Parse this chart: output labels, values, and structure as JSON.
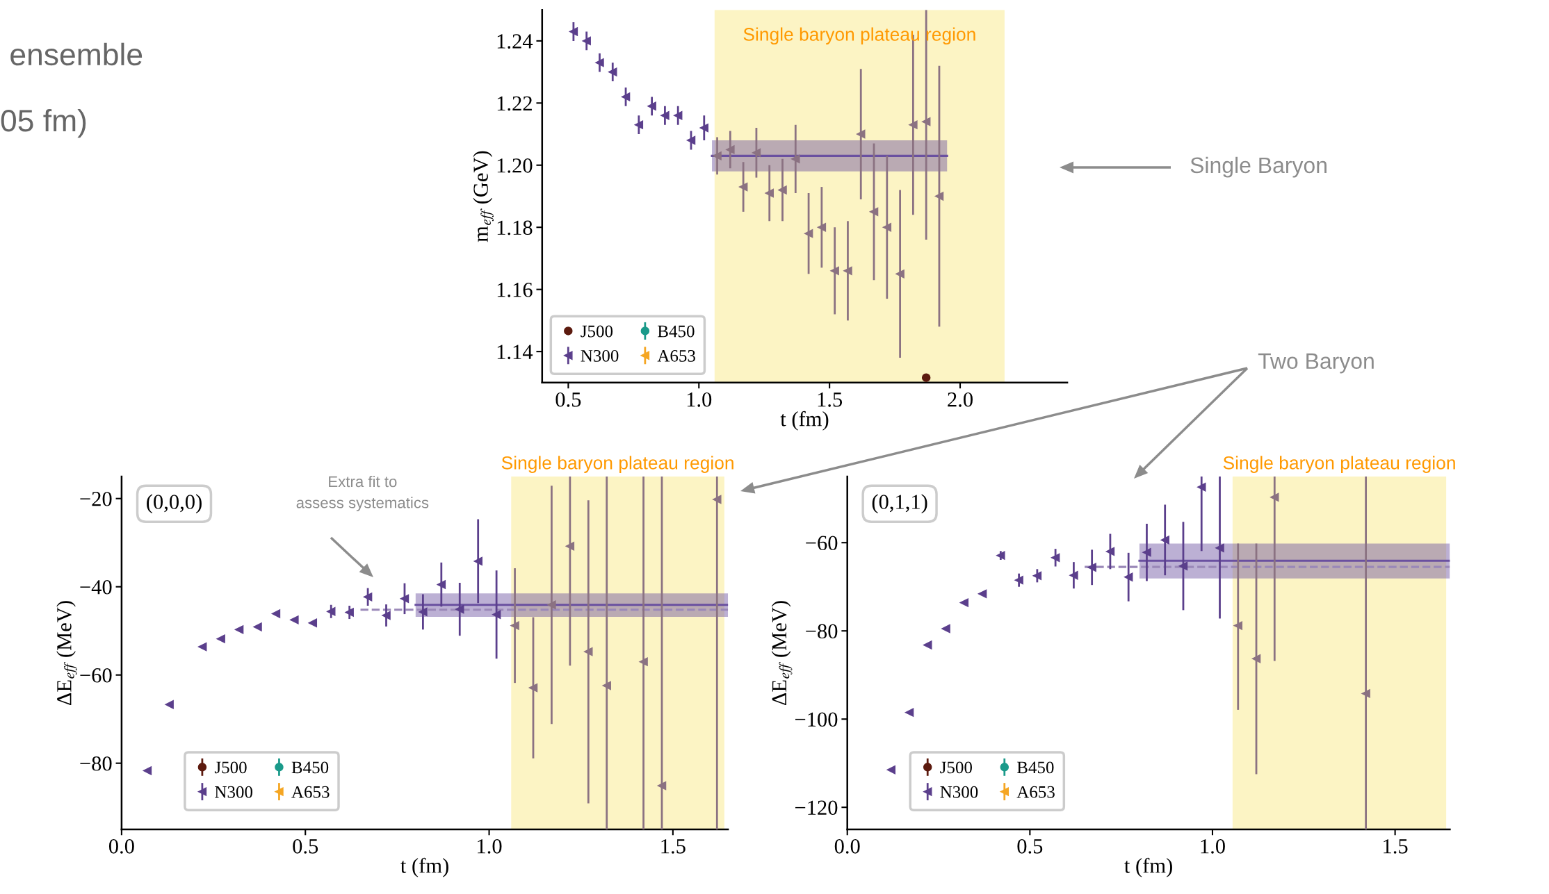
{
  "chart_data": [
    {
      "type": "scatter",
      "xlabel": "t (fm)",
      "ylabel": "m$_{eff}$ (GeV)",
      "xlim": [
        0.4,
        2.41
      ],
      "ylim": [
        1.13,
        1.25
      ],
      "xticks": [
        {
          "value": 0.5,
          "label": "0.5"
        },
        {
          "value": 1.0,
          "label": "1.0"
        },
        {
          "value": 1.5,
          "label": "1.5"
        },
        {
          "value": 2.0,
          "label": "2.0"
        }
      ],
      "yticks": [
        {
          "value": 1.14,
          "label": "1.14"
        },
        {
          "value": 1.16,
          "label": "1.16"
        },
        {
          "value": 1.18,
          "label": "1.18"
        },
        {
          "value": 1.2,
          "label": "1.20"
        },
        {
          "value": 1.22,
          "label": "1.22"
        },
        {
          "value": 1.24,
          "label": "1.24"
        }
      ],
      "legend": "bottom left",
      "bands": [
        {
          "axis": "x",
          "from": 1.06,
          "to": 2.17,
          "label": "Single baryon plateau region",
          "color": "#fcf4c4"
        }
      ],
      "annotations": [
        "ensemble",
        "05 fm)",
        "Single Baryon",
        "Two Baryon"
      ],
      "series": [
        {
          "name": "J500",
          "color": "#5c1a0e",
          "marker": "circle",
          "x": [
            1.87
          ],
          "values": [
            1.1316
          ]
        },
        {
          "name": "N300",
          "color": "#5b3f8c",
          "marker": "triangle",
          "x": [
            0.52,
            0.57,
            0.62,
            0.67,
            0.72,
            0.77,
            0.82,
            0.87,
            0.92,
            0.97,
            1.02
          ],
          "values": [
            1.243,
            1.24,
            1.233,
            1.23,
            1.222,
            1.213,
            1.219,
            1.216,
            1.216,
            1.208,
            1.212
          ],
          "errors": [
            0.003,
            0.003,
            0.003,
            0.003,
            0.003,
            0.003,
            0.003,
            0.003,
            0.003,
            0.003,
            0.004
          ]
        },
        {
          "name": "B450",
          "color": "#1a9a8a",
          "marker": "circle"
        },
        {
          "name": "A653",
          "color": "#f5a623",
          "marker": "triangle"
        },
        {
          "type": "line",
          "color": "#6a50a0",
          "x": [
            1.05,
            1.95
          ],
          "values": [
            1.203,
            1.203
          ],
          "lower": [
            1.198,
            1.198
          ],
          "upper": [
            1.208,
            1.208
          ]
        },
        {
          "color": "#8b7282",
          "marker": "triangle",
          "x": [
            1.07,
            1.12,
            1.17,
            1.22,
            1.27,
            1.32,
            1.37,
            1.42,
            1.47,
            1.52,
            1.57,
            1.62,
            1.67,
            1.72,
            1.77,
            1.82,
            1.87,
            1.92
          ],
          "values": [
            1.203,
            1.205,
            1.193,
            1.204,
            1.191,
            1.192,
            1.202,
            1.178,
            1.18,
            1.166,
            1.166,
            1.21,
            1.185,
            1.18,
            1.165,
            1.213,
            1.214,
            1.19
          ],
          "errors": [
            0.006,
            0.006,
            0.008,
            0.008,
            0.009,
            0.01,
            0.011,
            0.013,
            0.013,
            0.014,
            0.016,
            0.021,
            0.022,
            0.023,
            0.027,
            0.029,
            [
              1.176,
              1.25
            ],
            0.042
          ]
        }
      ]
    },
    {
      "type": "scatter",
      "xlabel": "t (fm)",
      "ylabel": "ΔE$_{eff}$ (MeV)",
      "xlim": [
        0,
        1.65
      ],
      "ylim": [
        -95,
        -15
      ],
      "xticks": [
        {
          "value": 0,
          "label": "0.0"
        },
        {
          "value": 0.5,
          "label": "0.5"
        },
        {
          "value": 1.0,
          "label": "1.0"
        },
        {
          "value": 1.5,
          "label": "1.5"
        }
      ],
      "yticks": [
        {
          "value": -80,
          "label": "−80"
        },
        {
          "value": -60,
          "label": "−60"
        },
        {
          "value": -40,
          "label": "−40"
        },
        {
          "value": -20,
          "label": "−20"
        }
      ],
      "legend": "bottom left",
      "bands": [
        {
          "axis": "x",
          "from": 1.06,
          "to": 1.64,
          "label": "Single baryon plateau region",
          "color": "#fcf4c4"
        }
      ],
      "annotations": [
        "(0,0,0)",
        "Extra fit to\nassess systematics"
      ],
      "series": [
        {
          "name": "J500",
          "color": "#5c1a0e",
          "marker": "circle"
        },
        {
          "name": "N300",
          "color": "#5b3f8c",
          "marker": "triangle",
          "x": [
            0.07,
            0.13,
            0.22,
            0.27,
            0.32,
            0.37,
            0.42,
            0.47,
            0.52,
            0.57,
            0.62,
            0.67,
            0.72,
            0.77,
            0.82,
            0.87,
            0.92,
            0.97,
            1.02
          ],
          "values": [
            -81.7,
            -66.7,
            -53.6,
            -51.8,
            -49.7,
            -49.1,
            -46.1,
            -47.5,
            -48.2,
            -45.6,
            -45.8,
            -42.3,
            -46.5,
            -42.7,
            -45.7,
            -39.5,
            -45.1,
            -34.2,
            -46.3
          ],
          "errors": [
            null,
            null,
            null,
            null,
            null,
            null,
            null,
            null,
            null,
            1.5,
            1.5,
            2,
            2.5,
            3.5,
            4,
            5,
            6,
            9.5,
            10
          ]
        },
        {
          "name": "B450",
          "color": "#1a9a8a",
          "marker": "circle"
        },
        {
          "name": "A653",
          "color": "#f5a623",
          "marker": "triangle"
        },
        {
          "type": "line",
          "color": "#6a50a0",
          "x": [
            0.8,
            1.65
          ],
          "values": [
            -44.1,
            -44.1
          ],
          "lower": [
            -46.8,
            -46.8
          ],
          "upper": [
            -41.5,
            -41.5
          ]
        },
        {
          "type": "line",
          "color": "#9a88b8",
          "line_style": "dashed",
          "x": [
            0.65,
            1.65
          ],
          "values": [
            -45.2,
            -45.2
          ]
        },
        {
          "color": "#8b7282",
          "marker": "triangle",
          "x": [
            1.07,
            1.12,
            1.17,
            1.22,
            1.27,
            1.32,
            1.42,
            1.47,
            1.62
          ],
          "values": [
            -48.8,
            -62.9,
            -44.1,
            -30.8,
            -54.7,
            -62.4,
            -57.0,
            -85.1,
            -20.2
          ],
          "errors": [
            13,
            16,
            27,
            [
              -57.9,
              -15
            ],
            [
              -89.1,
              -20.4
            ],
            [
              -95,
              -15
            ],
            [
              -95,
              -15
            ],
            [
              -95,
              -15
            ],
            [
              -95,
              -15
            ]
          ]
        }
      ]
    },
    {
      "type": "scatter",
      "xlabel": "t (fm)",
      "ylabel": "ΔE$_{eff}$ (MeV)",
      "xlim": [
        0,
        1.65
      ],
      "ylim": [
        -125,
        -45
      ],
      "xticks": [
        {
          "value": 0,
          "label": "0.0"
        },
        {
          "value": 0.5,
          "label": "0.5"
        },
        {
          "value": 1.0,
          "label": "1.0"
        },
        {
          "value": 1.5,
          "label": "1.5"
        }
      ],
      "yticks": [
        {
          "value": -120,
          "label": "−120"
        },
        {
          "value": -100,
          "label": "−100"
        },
        {
          "value": -80,
          "label": "−80"
        },
        {
          "value": -60,
          "label": "−60"
        }
      ],
      "legend": "bottom left",
      "bands": [
        {
          "axis": "x",
          "from": 1.055,
          "to": 1.64,
          "label": "Single baryon plateau region",
          "color": "#fcf4c4"
        }
      ],
      "annotations": [
        "(0,1,1)"
      ],
      "series": [
        {
          "name": "J500",
          "color": "#5c1a0e",
          "marker": "circle"
        },
        {
          "name": "N300",
          "color": "#5b3f8c",
          "marker": "triangle",
          "x": [
            0.12,
            0.17,
            0.22,
            0.27,
            0.32,
            0.37,
            0.42,
            0.47,
            0.52,
            0.57,
            0.62,
            0.67,
            0.72,
            0.77,
            0.82,
            0.87,
            0.92,
            0.97,
            1.02
          ],
          "values": [
            -111.5,
            -98.5,
            -83.2,
            -79.5,
            -73.6,
            -71.6,
            -62.9,
            -68.5,
            -67.5,
            -63.4,
            -67.4,
            -65.6,
            -62.0,
            -67.8,
            -62.2,
            -59.4,
            -65.3,
            -47.4,
            -61.2
          ],
          "errors": [
            null,
            null,
            null,
            null,
            null,
            null,
            1,
            1.5,
            1.5,
            2,
            3,
            4,
            4,
            5.5,
            6.5,
            8,
            10,
            [
              -61.9,
              -45
            ],
            [
              -77.2,
              -45
            ]
          ]
        },
        {
          "name": "B450",
          "color": "#1a9a8a",
          "marker": "circle"
        },
        {
          "name": "A653",
          "color": "#f5a623",
          "marker": "triangle"
        },
        {
          "type": "line",
          "color": "#6a50a0",
          "x": [
            0.8,
            1.65
          ],
          "values": [
            -64.1,
            -64.1
          ],
          "lower": [
            -68.1,
            -68.1
          ],
          "upper": [
            -60.2,
            -60.2
          ]
        },
        {
          "type": "line",
          "color": "#9a88b8",
          "line_style": "dashed",
          "x": [
            0.65,
            1.65
          ],
          "values": [
            -65.5,
            -65.5
          ]
        },
        {
          "color": "#8b7282",
          "marker": "triangle",
          "x": [
            1.07,
            1.12,
            1.17,
            1.42
          ],
          "values": [
            -78.8,
            -86.3,
            -49.7,
            -94.2
          ],
          "errors": [
            [
              -97.9,
              -60.2
            ],
            [
              -112.5,
              -60.2
            ],
            [
              -86.8,
              -45
            ],
            [
              -125,
              -45
            ]
          ]
        }
      ]
    }
  ]
}
